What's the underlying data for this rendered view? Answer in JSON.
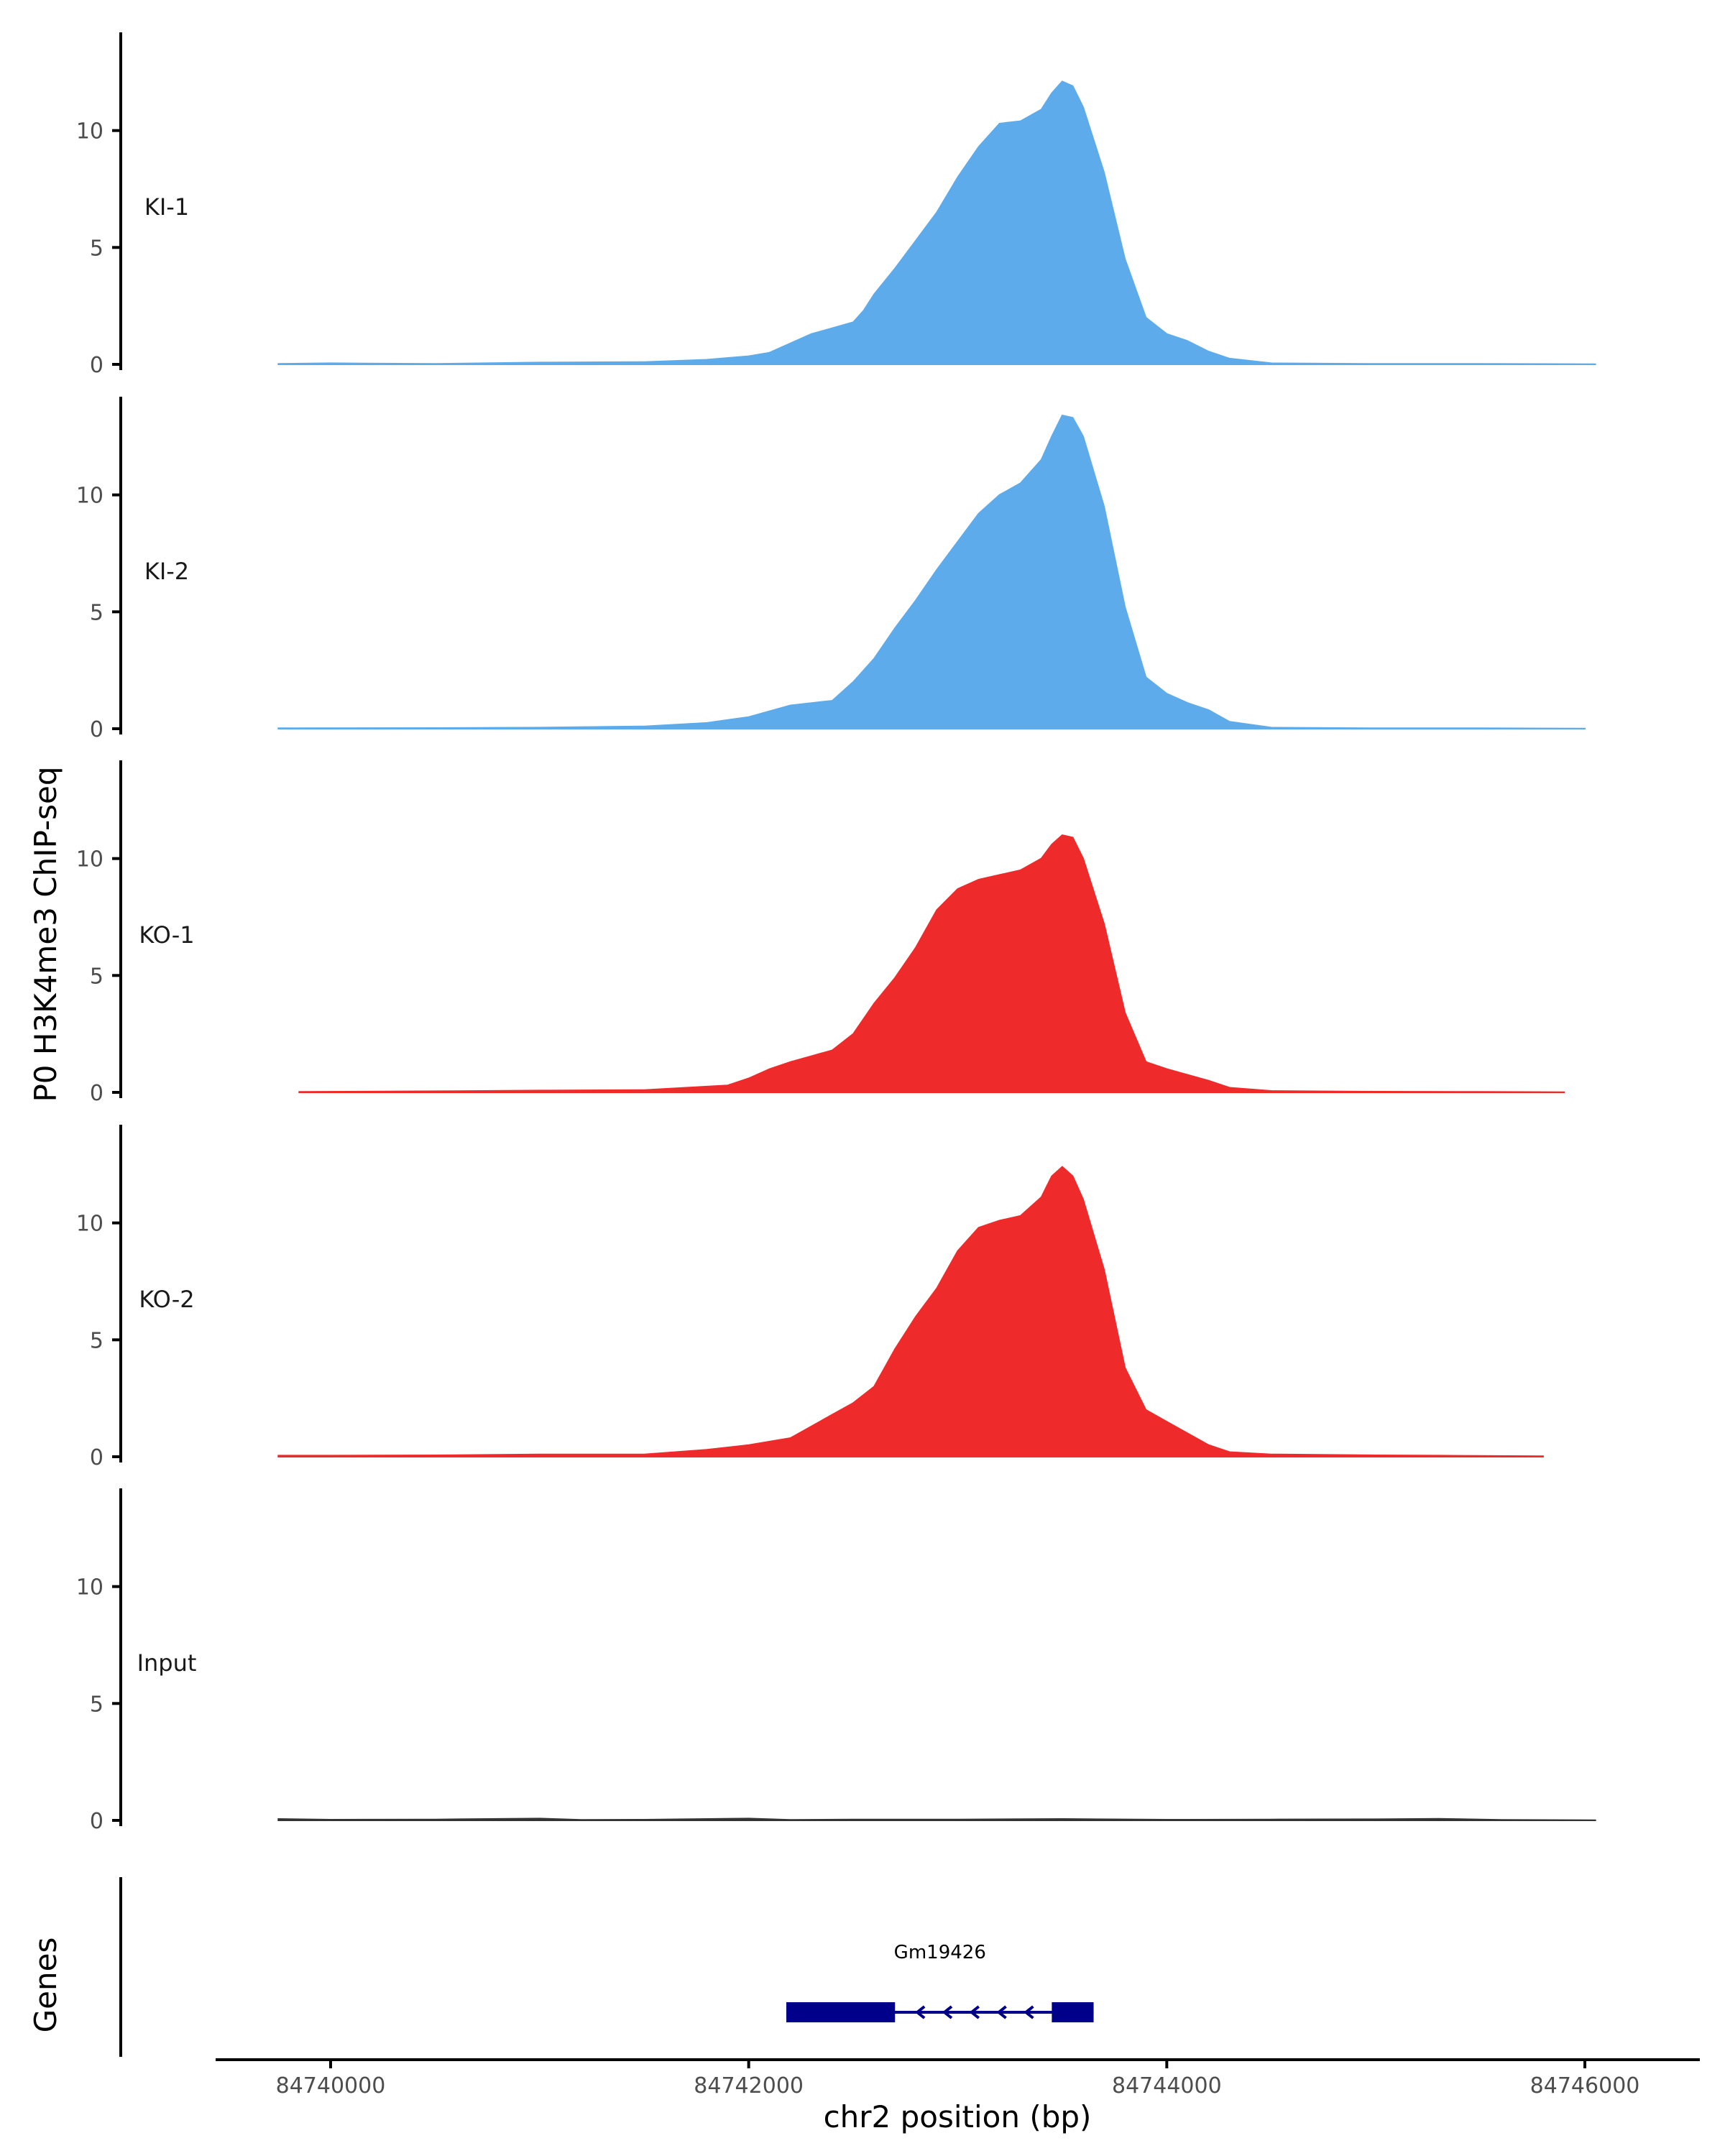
{
  "chart_data": {
    "type": "area",
    "ylabel": "P0 H3K4me3 ChIP-seq",
    "xlabel": "chr2 position (bp)",
    "xlim": [
      84739450,
      84746550
    ],
    "ylim": [
      0,
      14.2
    ],
    "yticks": [
      0,
      5,
      10
    ],
    "ytick_labels": [
      "0",
      "5",
      "10"
    ],
    "xticks": [
      84740000,
      84742000,
      84744000,
      84746000
    ],
    "xtick_labels": [
      "84740000",
      "84742000",
      "84744000",
      "84746000"
    ],
    "colors": {
      "KI": "#5eabeb",
      "KO": "#ee2a2b",
      "Input": "#333333",
      "gene": "#00008b"
    },
    "tracks": [
      {
        "name": "KI-1",
        "color": "#5eabeb",
        "points": [
          [
            84739750,
            0.02
          ],
          [
            84740000,
            0.05
          ],
          [
            84740500,
            0.02
          ],
          [
            84741000,
            0.08
          ],
          [
            84741500,
            0.1
          ],
          [
            84741800,
            0.2
          ],
          [
            84742000,
            0.35
          ],
          [
            84742100,
            0.5
          ],
          [
            84742200,
            0.9
          ],
          [
            84742300,
            1.3
          ],
          [
            84742400,
            1.55
          ],
          [
            84742500,
            1.8
          ],
          [
            84742550,
            2.3
          ],
          [
            84742600,
            3.0
          ],
          [
            84742700,
            4.1
          ],
          [
            84742800,
            5.3
          ],
          [
            84742900,
            6.5
          ],
          [
            84743000,
            8.0
          ],
          [
            84743100,
            9.3
          ],
          [
            84743200,
            10.3
          ],
          [
            84743300,
            10.4
          ],
          [
            84743400,
            10.9
          ],
          [
            84743450,
            11.6
          ],
          [
            84743500,
            12.1
          ],
          [
            84743550,
            11.9
          ],
          [
            84743600,
            11.0
          ],
          [
            84743700,
            8.2
          ],
          [
            84743800,
            4.5
          ],
          [
            84743900,
            2.0
          ],
          [
            84744000,
            1.3
          ],
          [
            84744100,
            1.0
          ],
          [
            84744200,
            0.55
          ],
          [
            84744300,
            0.25
          ],
          [
            84744500,
            0.05
          ],
          [
            84745000,
            0.02
          ],
          [
            84745500,
            0.02
          ],
          [
            84746050,
            0.01
          ]
        ]
      },
      {
        "name": "KI-2",
        "color": "#5eabeb",
        "points": [
          [
            84739750,
            0.02
          ],
          [
            84740500,
            0.03
          ],
          [
            84741000,
            0.05
          ],
          [
            84741500,
            0.1
          ],
          [
            84741800,
            0.25
          ],
          [
            84742000,
            0.5
          ],
          [
            84742100,
            0.75
          ],
          [
            84742200,
            1.0
          ],
          [
            84742300,
            1.1
          ],
          [
            84742400,
            1.2
          ],
          [
            84742500,
            2.0
          ],
          [
            84742600,
            3.0
          ],
          [
            84742700,
            4.3
          ],
          [
            84742800,
            5.5
          ],
          [
            84742900,
            6.8
          ],
          [
            84743000,
            8.0
          ],
          [
            84743100,
            9.2
          ],
          [
            84743200,
            10.0
          ],
          [
            84743300,
            10.5
          ],
          [
            84743400,
            11.5
          ],
          [
            84743450,
            12.5
          ],
          [
            84743500,
            13.4
          ],
          [
            84743550,
            13.3
          ],
          [
            84743600,
            12.5
          ],
          [
            84743700,
            9.5
          ],
          [
            84743800,
            5.2
          ],
          [
            84743900,
            2.2
          ],
          [
            84744000,
            1.5
          ],
          [
            84744100,
            1.1
          ],
          [
            84744200,
            0.8
          ],
          [
            84744300,
            0.3
          ],
          [
            84744500,
            0.05
          ],
          [
            84745000,
            0.02
          ],
          [
            84745500,
            0.02
          ],
          [
            84746000,
            0.01
          ]
        ]
      },
      {
        "name": "KO-1",
        "color": "#ee2a2b",
        "points": [
          [
            84739850,
            0.02
          ],
          [
            84740500,
            0.05
          ],
          [
            84741000,
            0.08
          ],
          [
            84741500,
            0.1
          ],
          [
            84741700,
            0.2
          ],
          [
            84741900,
            0.3
          ],
          [
            84742000,
            0.6
          ],
          [
            84742100,
            1.0
          ],
          [
            84742200,
            1.3
          ],
          [
            84742300,
            1.55
          ],
          [
            84742400,
            1.8
          ],
          [
            84742500,
            2.5
          ],
          [
            84742600,
            3.8
          ],
          [
            84742700,
            4.9
          ],
          [
            84742800,
            6.2
          ],
          [
            84742900,
            7.8
          ],
          [
            84743000,
            8.7
          ],
          [
            84743100,
            9.1
          ],
          [
            84743200,
            9.3
          ],
          [
            84743300,
            9.5
          ],
          [
            84743400,
            10.0
          ],
          [
            84743450,
            10.6
          ],
          [
            84743500,
            11.0
          ],
          [
            84743550,
            10.9
          ],
          [
            84743600,
            10.0
          ],
          [
            84743700,
            7.2
          ],
          [
            84743800,
            3.4
          ],
          [
            84743900,
            1.3
          ],
          [
            84744000,
            1.0
          ],
          [
            84744100,
            0.75
          ],
          [
            84744200,
            0.5
          ],
          [
            84744300,
            0.2
          ],
          [
            84744500,
            0.06
          ],
          [
            84745000,
            0.03
          ],
          [
            84745500,
            0.02
          ],
          [
            84745900,
            0.01
          ]
        ]
      },
      {
        "name": "KO-2",
        "color": "#ee2a2b",
        "points": [
          [
            84739750,
            0.05
          ],
          [
            84740000,
            0.05
          ],
          [
            84740500,
            0.06
          ],
          [
            84741000,
            0.1
          ],
          [
            84741500,
            0.1
          ],
          [
            84741800,
            0.3
          ],
          [
            84742000,
            0.5
          ],
          [
            84742200,
            0.8
          ],
          [
            84742300,
            1.3
          ],
          [
            84742400,
            1.8
          ],
          [
            84742500,
            2.3
          ],
          [
            84742600,
            3.0
          ],
          [
            84742700,
            4.6
          ],
          [
            84742800,
            6.0
          ],
          [
            84742900,
            7.2
          ],
          [
            84743000,
            8.8
          ],
          [
            84743100,
            9.8
          ],
          [
            84743200,
            10.1
          ],
          [
            84743300,
            10.3
          ],
          [
            84743400,
            11.1
          ],
          [
            84743450,
            12.0
          ],
          [
            84743500,
            12.4
          ],
          [
            84743550,
            12.0
          ],
          [
            84743600,
            11.0
          ],
          [
            84743700,
            8.0
          ],
          [
            84743800,
            3.8
          ],
          [
            84743900,
            2.0
          ],
          [
            84744000,
            1.5
          ],
          [
            84744100,
            1.0
          ],
          [
            84744200,
            0.5
          ],
          [
            84744300,
            0.2
          ],
          [
            84744500,
            0.1
          ],
          [
            84745000,
            0.06
          ],
          [
            84745300,
            0.05
          ],
          [
            84745800,
            0.02
          ]
        ]
      },
      {
        "name": "Input",
        "color": "#333333",
        "points": [
          [
            84739750,
            0.06
          ],
          [
            84740000,
            0.03
          ],
          [
            84740500,
            0.04
          ],
          [
            84741000,
            0.08
          ],
          [
            84741200,
            0.02
          ],
          [
            84741500,
            0.03
          ],
          [
            84742000,
            0.08
          ],
          [
            84742200,
            0.02
          ],
          [
            84742500,
            0.04
          ],
          [
            84743000,
            0.04
          ],
          [
            84743500,
            0.06
          ],
          [
            84744000,
            0.03
          ],
          [
            84744500,
            0.04
          ],
          [
            84745000,
            0.05
          ],
          [
            84745300,
            0.07
          ],
          [
            84745600,
            0.02
          ],
          [
            84746050,
            0.01
          ]
        ]
      }
    ],
    "genes_track": {
      "label": "Genes",
      "gene": {
        "name": "Gm19426",
        "start": 84742180,
        "end": 84743650,
        "strand": "-",
        "exons": [
          [
            84742180,
            84742700
          ],
          [
            84743450,
            84743650
          ]
        ],
        "arrows": [
          84742820,
          84742950,
          84743080,
          84743210,
          84743340
        ]
      }
    }
  }
}
